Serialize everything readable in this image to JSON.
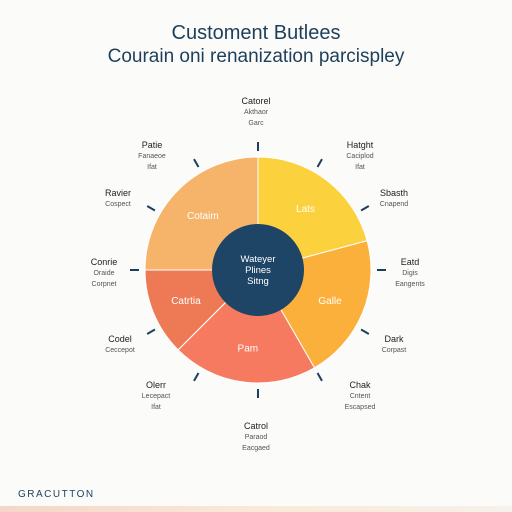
{
  "header": {
    "title": "Customent Butlees",
    "subtitle": "Courain oni renanization parcispley"
  },
  "center": {
    "lines": [
      "Wateyer",
      "Plines",
      "Sitng"
    ]
  },
  "segments": [
    {
      "label": "Cotaim",
      "color": "#f5b46a"
    },
    {
      "label": "Lats",
      "color": "#fbd13e"
    },
    {
      "label": "Galle",
      "color": "#fbb03c"
    },
    {
      "label": "Pam",
      "color": "#f57a5f"
    },
    {
      "label": "Catrtia",
      "color": "#ee7a55"
    }
  ],
  "outer_labels": [
    {
      "main": "Catorel",
      "sub": [
        "Akthaor",
        "Garc"
      ]
    },
    {
      "main": "Hatght",
      "sub": [
        "Caciplod",
        "Ifat"
      ]
    },
    {
      "main": "Sbasth",
      "sub": [
        "Cnapend"
      ]
    },
    {
      "main": "Eatd",
      "sub": [
        "Digis",
        "Eangents"
      ]
    },
    {
      "main": "Dark",
      "sub": [
        "Corpast"
      ]
    },
    {
      "main": "Chak",
      "sub": [
        "Cntent",
        "Escapsed"
      ]
    },
    {
      "main": "Catrol",
      "sub": [
        "Paraod",
        "Eacgaed"
      ]
    },
    {
      "main": "Olerr",
      "sub": [
        "Lecepact",
        "Ifat"
      ]
    },
    {
      "main": "Codel",
      "sub": [
        "Ceccepot"
      ]
    },
    {
      "main": "Conrie",
      "sub": [
        "Oraide",
        "Corpnet"
      ]
    },
    {
      "main": "Ravier",
      "sub": [
        "Cospect"
      ]
    },
    {
      "main": "Patie",
      "sub": [
        "Fanaeoe",
        "Ifat"
      ]
    }
  ],
  "footer": {
    "text": "GRACUTTON"
  }
}
